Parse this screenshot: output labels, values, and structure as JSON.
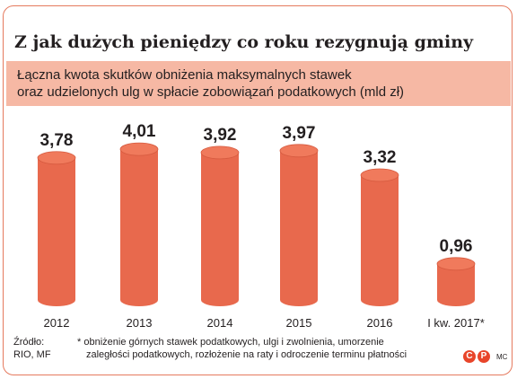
{
  "title": "Z jak dużych pieniędzy co roku rezygnują gminy",
  "subtitle_line1": "Łączna kwota skutków obniżenia maksymalnych stawek",
  "subtitle_line2": "oraz udzielonych ulg w spłacie zobowiązań podatkowych (mld zł)",
  "chart_data": {
    "type": "bar",
    "categories": [
      "2012",
      "2013",
      "2014",
      "2015",
      "2016",
      "I kw. 2017*"
    ],
    "values": [
      3.78,
      4.01,
      3.92,
      3.97,
      3.32,
      0.96
    ],
    "value_labels": [
      "3,78",
      "4,01",
      "3,92",
      "3,97",
      "3,32",
      "0,96"
    ],
    "ylim": [
      0,
      4.3
    ],
    "bar_color": "#e8694d",
    "bar_top_color": "#f07a5c"
  },
  "source": {
    "line1": "Źródło:",
    "line2": "RIO, MF"
  },
  "footnote": {
    "line1": "* obniżenie górnych stawek podatkowych, ulgi i zwolnienia, umorzenie",
    "line2": "zaległości podatkowych, rozłożenie na raty i odroczenie terminu płatności"
  },
  "credits": {
    "c_mark": "C",
    "p_mark": "P",
    "author": "MC"
  }
}
